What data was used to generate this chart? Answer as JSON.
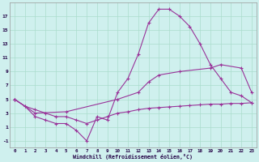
{
  "xlabel": "Windchill (Refroidissement éolien,°C)",
  "bg_color": "#cff0ee",
  "grid_color": "#aaddcc",
  "line_color": "#993399",
  "xlim": [
    -0.5,
    23.5
  ],
  "ylim": [
    -2,
    19
  ],
  "xticks": [
    0,
    1,
    2,
    3,
    4,
    5,
    6,
    7,
    8,
    9,
    10,
    11,
    12,
    13,
    14,
    15,
    16,
    17,
    18,
    19,
    20,
    21,
    22,
    23
  ],
  "yticks": [
    -1,
    1,
    3,
    5,
    7,
    9,
    11,
    13,
    15,
    17
  ],
  "line1_x": [
    0,
    1,
    2,
    3,
    4,
    5,
    6,
    7,
    8,
    9,
    10,
    11,
    12,
    13,
    14,
    15,
    16,
    17,
    18,
    19,
    20,
    21,
    22,
    23
  ],
  "line1_y": [
    5.0,
    4.0,
    2.5,
    2.0,
    1.5,
    1.5,
    0.5,
    -1.0,
    2.5,
    2.0,
    6.0,
    8.0,
    11.5,
    16.0,
    18.0,
    18.0,
    17.0,
    15.5,
    13.0,
    10.0,
    8.0,
    6.0,
    5.5,
    4.5
  ],
  "line2_x": [
    0,
    1,
    2,
    3,
    4,
    5,
    6,
    7,
    8,
    9,
    10,
    11,
    12,
    13,
    14,
    15,
    16,
    17,
    18,
    19,
    20,
    21,
    22,
    23
  ],
  "line2_y": [
    5.0,
    4.0,
    3.5,
    3.0,
    2.5,
    2.5,
    2.0,
    1.5,
    2.0,
    2.5,
    3.0,
    3.2,
    3.5,
    3.7,
    3.8,
    3.9,
    4.0,
    4.1,
    4.2,
    4.3,
    4.3,
    4.4,
    4.4,
    4.5
  ],
  "line3_x": [
    0,
    2,
    5,
    10,
    12,
    13,
    14,
    16,
    19,
    20,
    22,
    23
  ],
  "line3_y": [
    5.0,
    3.0,
    3.2,
    5.0,
    6.0,
    7.5,
    8.5,
    9.0,
    9.5,
    10.0,
    9.5,
    6.0
  ]
}
